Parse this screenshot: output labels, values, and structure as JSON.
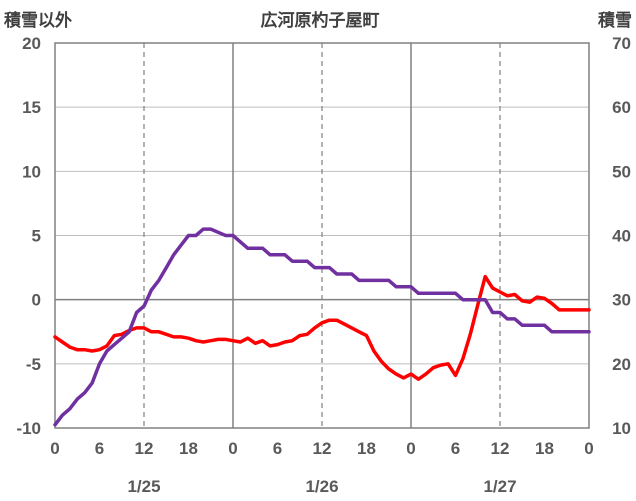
{
  "chart_data": {
    "type": "line",
    "title": "広河原杓子屋町",
    "ylabel_left": "積雪以外",
    "ylabel_right": "積雪",
    "ylim_left": [
      -10,
      20
    ],
    "ylim_right": [
      10,
      70
    ],
    "yticks_left": [
      "20",
      "15",
      "10",
      "5",
      "0",
      "-5",
      "-10"
    ],
    "yticks_right": [
      "70",
      "60",
      "50",
      "40",
      "30",
      "20",
      "10"
    ],
    "xlim_hours": [
      0,
      72
    ],
    "xtick_labels": [
      "0",
      "6",
      "12",
      "18",
      "0",
      "6",
      "12",
      "18",
      "0",
      "6",
      "12",
      "18",
      "0"
    ],
    "day_labels": [
      "1/25",
      "1/26",
      "1/27"
    ],
    "grid": {
      "dashed_vertical_hours": [
        12,
        36,
        60
      ],
      "solid_vertical_hours": [
        24,
        48
      ]
    },
    "series": [
      {
        "color": "#ff0000",
        "axis": "left",
        "x": [
          0,
          1,
          2,
          3,
          4,
          5,
          6,
          7,
          8,
          9,
          10,
          11,
          12,
          13,
          14,
          15,
          16,
          17,
          18,
          19,
          20,
          21,
          22,
          23,
          24,
          25,
          26,
          27,
          28,
          29,
          30,
          31,
          32,
          33,
          34,
          35,
          36,
          37,
          38,
          39,
          40,
          41,
          42,
          43,
          44,
          45,
          46,
          47,
          48,
          49,
          50,
          51,
          52,
          53,
          54,
          55,
          56,
          57,
          58,
          59,
          60,
          61,
          62,
          63,
          64,
          65,
          66,
          67,
          68,
          69,
          70,
          71,
          72
        ],
        "values": [
          -2.9,
          -3.3,
          -3.7,
          -3.9,
          -3.9,
          -4.0,
          -3.9,
          -3.6,
          -2.8,
          -2.7,
          -2.4,
          -2.2,
          -2.2,
          -2.5,
          -2.5,
          -2.7,
          -2.9,
          -2.9,
          -3.0,
          -3.2,
          -3.3,
          -3.2,
          -3.1,
          -3.1,
          -3.2,
          -3.3,
          -3.0,
          -3.4,
          -3.2,
          -3.6,
          -3.5,
          -3.3,
          -3.2,
          -2.8,
          -2.7,
          -2.2,
          -1.8,
          -1.6,
          -1.6,
          -1.9,
          -2.2,
          -2.5,
          -2.8,
          -4.0,
          -4.8,
          -5.4,
          -5.8,
          -6.1,
          -5.8,
          -6.2,
          -5.8,
          -5.3,
          -5.1,
          -5.0,
          -5.9,
          -4.6,
          -2.7,
          -0.4,
          1.8,
          0.9,
          0.6,
          0.3,
          0.4,
          -0.1,
          -0.2,
          0.2,
          0.1,
          -0.3,
          -0.8,
          -0.8,
          -0.8,
          -0.8,
          -0.8
        ]
      },
      {
        "color": "#7030a0",
        "axis": "right",
        "x": [
          0,
          1,
          2,
          3,
          4,
          5,
          6,
          7,
          8,
          9,
          10,
          11,
          12,
          13,
          14,
          15,
          16,
          17,
          18,
          19,
          20,
          21,
          22,
          23,
          24,
          25,
          26,
          27,
          28,
          29,
          30,
          31,
          32,
          33,
          34,
          35,
          36,
          37,
          38,
          39,
          40,
          41,
          42,
          43,
          44,
          45,
          46,
          47,
          48,
          49,
          50,
          51,
          52,
          53,
          54,
          55,
          56,
          57,
          58,
          59,
          60,
          61,
          62,
          63,
          64,
          65,
          66,
          67,
          68,
          69,
          70,
          71,
          72
        ],
        "values": [
          10.5,
          12,
          13,
          14.5,
          15.5,
          17,
          20,
          22,
          23,
          24,
          25,
          28,
          29,
          31.5,
          33,
          35,
          37,
          38.5,
          40,
          40,
          41,
          41,
          40.5,
          40,
          40,
          39,
          38,
          38,
          38,
          37,
          37,
          37,
          36,
          36,
          36,
          35,
          35,
          35,
          34,
          34,
          34,
          33,
          33,
          33,
          33,
          33,
          32,
          32,
          32,
          31,
          31,
          31,
          31,
          31,
          31,
          30,
          30,
          30,
          30,
          28,
          28,
          27,
          27,
          26,
          26,
          26,
          26,
          25,
          25,
          25,
          25,
          25,
          25
        ]
      }
    ]
  }
}
